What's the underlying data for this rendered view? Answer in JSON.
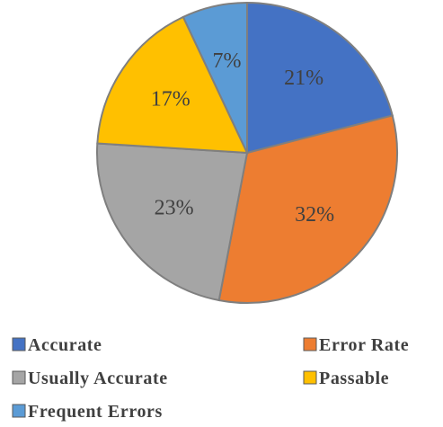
{
  "chart_data": {
    "type": "pie",
    "categories": [
      "Accurate",
      "Error Rate",
      "Usually Accurate",
      "Passable",
      "Frequent Errors"
    ],
    "values": [
      21,
      32,
      23,
      17,
      7
    ],
    "labels": [
      "21%",
      "32%",
      "23%",
      "17%",
      "7%"
    ],
    "colors": [
      "#4472c4",
      "#ed7d31",
      "#a5a5a5",
      "#ffc000",
      "#5b9bd5"
    ],
    "start": "top, clockwise",
    "legend": "bottom"
  }
}
